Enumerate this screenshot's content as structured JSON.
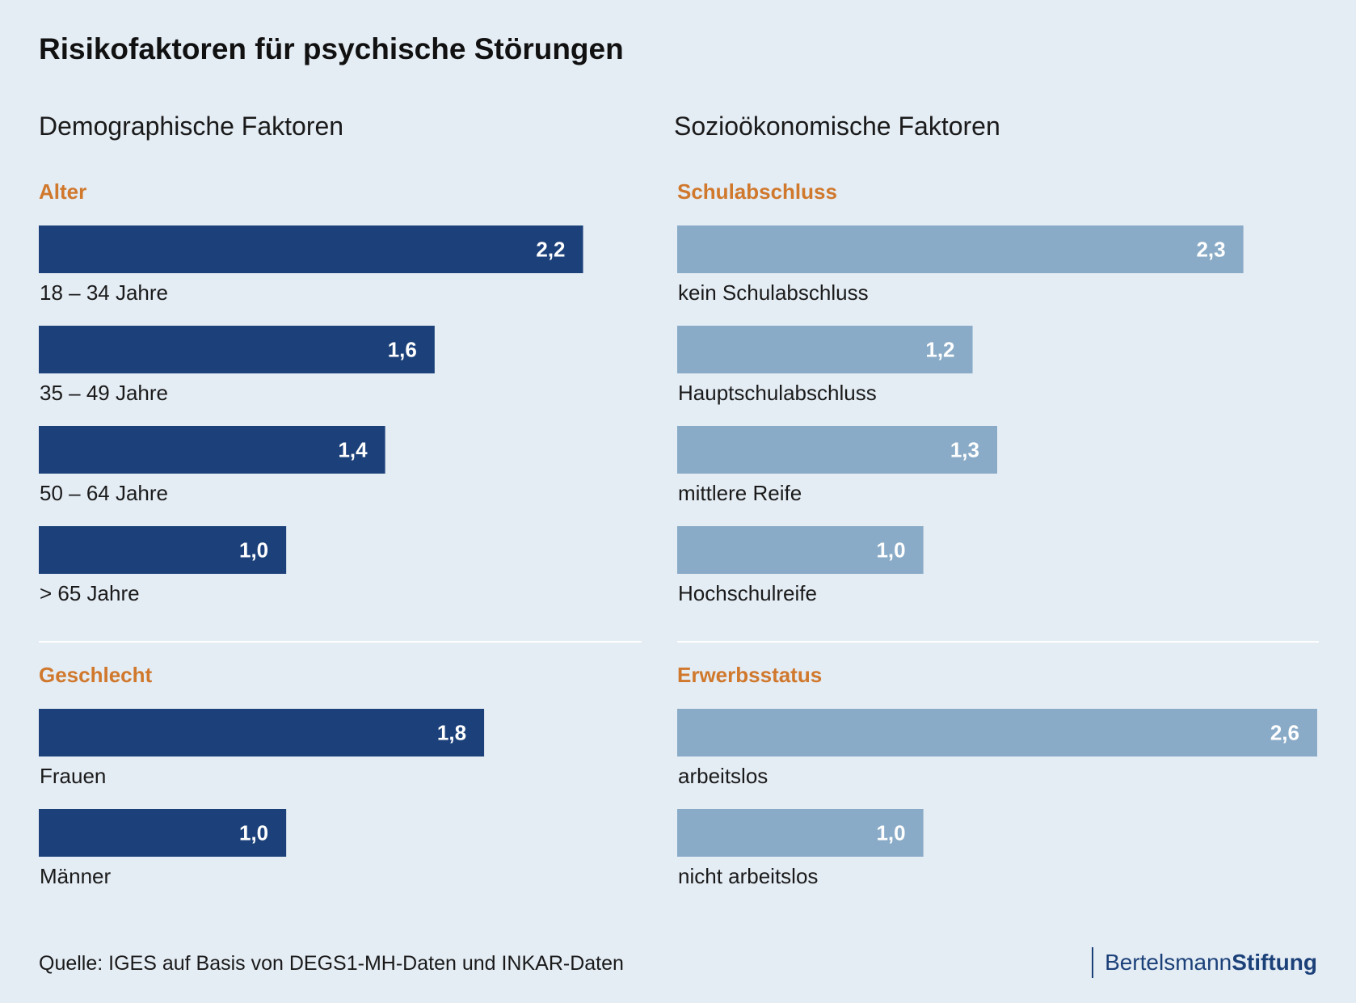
{
  "title": "Risikofaktoren für psychische Störungen",
  "columns": {
    "left_heading": "Demographische Faktoren",
    "right_heading": "Sozioökonomische Faktoren"
  },
  "colors": {
    "background": "#e4ecf4",
    "demographic_bar": "#1c417a",
    "socioeconomic_bar": "#89abc7",
    "group_label": "#d0782c",
    "bar_value_text": "#ffffff"
  },
  "chart_data": [
    {
      "type": "bar",
      "orientation": "horizontal",
      "title": "Alter",
      "categories": [
        "18 – 34 Jahre",
        "35 – 49 Jahre",
        "50 – 64 Jahre",
        "> 65 Jahre"
      ],
      "values": [
        2.2,
        1.6,
        1.4,
        1.0
      ],
      "value_labels": [
        "2,2",
        "1,6",
        "1,4",
        "1,0"
      ],
      "xlim": [
        0,
        2.6
      ]
    },
    {
      "type": "bar",
      "orientation": "horizontal",
      "title": "Geschlecht",
      "categories": [
        "Frauen",
        "Männer"
      ],
      "values": [
        1.8,
        1.0
      ],
      "value_labels": [
        "1,8",
        "1,0"
      ],
      "xlim": [
        0,
        2.6
      ]
    },
    {
      "type": "bar",
      "orientation": "horizontal",
      "title": "Schulabschluss",
      "categories": [
        "kein Schulabschluss",
        "Hauptschulabschluss",
        "mittlere Reife",
        "Hochschulreife"
      ],
      "values": [
        2.3,
        1.2,
        1.3,
        1.0
      ],
      "value_labels": [
        "2,3",
        "1,2",
        "1,3",
        "1,0"
      ],
      "xlim": [
        0,
        2.6
      ]
    },
    {
      "type": "bar",
      "orientation": "horizontal",
      "title": "Erwerbsstatus",
      "categories": [
        "arbeitslos",
        "nicht arbeitslos"
      ],
      "values": [
        2.6,
        1.0
      ],
      "value_labels": [
        "2,6",
        "1,0"
      ],
      "xlim": [
        0,
        2.6
      ]
    }
  ],
  "footer": {
    "source": "Quelle: IGES auf Basis von DEGS1-MH-Daten und INKAR-Daten",
    "brand_regular": "Bertelsmann",
    "brand_bold": "Stiftung"
  }
}
